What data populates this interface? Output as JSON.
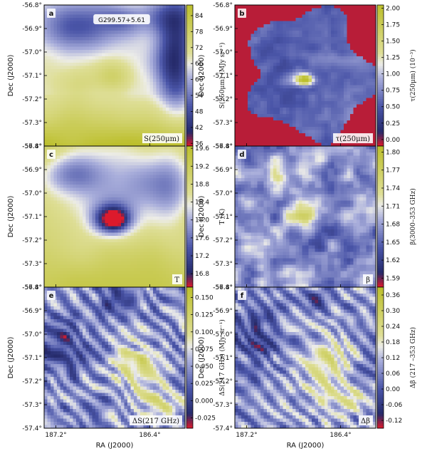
{
  "chart_data": [
    {
      "type": "heatmap",
      "panel": "a",
      "inside_label": "S(250μm)",
      "annotation": "G299.57+5.61",
      "colorbar": {
        "label": "S(250μm) (MJy sr⁻¹)",
        "ticks": [
          "84",
          "78",
          "72",
          "66",
          "60",
          "54",
          "48",
          "42",
          "36"
        ],
        "tick_values": [
          84,
          78,
          72,
          66,
          60,
          54,
          48,
          42,
          36
        ],
        "range": [
          35,
          88
        ],
        "map": "red-blue-yellow"
      }
    },
    {
      "type": "heatmap",
      "panel": "b",
      "inside_label": "τ(250μm)",
      "colorbar": {
        "label": "τ(250μm) (10⁻³)",
        "ticks": [
          "2.00",
          "1.75",
          "1.50",
          "1.25",
          "1.00",
          "0.75",
          "0.50",
          "0.25",
          "0.00"
        ],
        "tick_values": [
          2.0,
          1.75,
          1.5,
          1.25,
          1.0,
          0.75,
          0.5,
          0.25,
          0.0
        ],
        "range": [
          -0.1,
          2.05
        ],
        "map": "red-blue-yellow"
      }
    },
    {
      "type": "heatmap",
      "panel": "c",
      "inside_label": "T",
      "colorbar": {
        "label": "T (K)",
        "ticks": [
          "19.6",
          "19.2",
          "18.8",
          "18.4",
          "18.0",
          "17.6",
          "17.2",
          "16.8"
        ],
        "tick_values": [
          19.6,
          19.2,
          18.8,
          18.4,
          18.0,
          17.6,
          17.2,
          16.8
        ],
        "range": [
          16.5,
          19.65
        ],
        "map": "red-blue-yellow"
      }
    },
    {
      "type": "heatmap",
      "panel": "d",
      "inside_label": "β",
      "colorbar": {
        "label": "β(3000–353 GHz)",
        "ticks": [
          "1.80",
          "1.77",
          "1.74",
          "1.71",
          "1.68",
          "1.65",
          "1.62",
          "1.59"
        ],
        "tick_values": [
          1.8,
          1.77,
          1.74,
          1.71,
          1.68,
          1.65,
          1.62,
          1.59
        ],
        "range": [
          1.575,
          1.81
        ],
        "map": "red-blue-yellow"
      }
    },
    {
      "type": "heatmap",
      "panel": "e",
      "inside_label": "ΔS(217 GHz)",
      "colorbar": {
        "label": "ΔS(217 GHz) (MJy sr⁻¹)",
        "ticks": [
          "0.150",
          "0.125",
          "0.100",
          "0.075",
          "0.050",
          "0.025",
          "0.000",
          "-0.025"
        ],
        "tick_values": [
          0.15,
          0.125,
          0.1,
          0.075,
          0.05,
          0.025,
          0.0,
          -0.025
        ],
        "range": [
          -0.04,
          0.165
        ],
        "map": "red-blue-yellow"
      }
    },
    {
      "type": "heatmap",
      "panel": "f",
      "inside_label": "Δβ",
      "colorbar": {
        "label": "Δβ (217 –353 GHz)",
        "ticks": [
          "0.36",
          "0.30",
          "0.24",
          "0.18",
          "0.12",
          "0.06",
          "0.00",
          "-0.06",
          "-0.12"
        ],
        "tick_values": [
          0.36,
          0.3,
          0.24,
          0.18,
          0.12,
          0.06,
          0.0,
          -0.06,
          -0.12
        ],
        "range": [
          -0.15,
          0.39
        ],
        "map": "red-blue-yellow"
      }
    }
  ],
  "axes": {
    "ylabel": "Dec (J2000)",
    "xlabel": "RA (J2000)",
    "yticks": [
      "-56.8°",
      "-56.9°",
      "-57.0°",
      "-57.1°",
      "-57.2°",
      "-57.3°",
      "-57.4°"
    ],
    "ytick_values": [
      -56.8,
      -56.9,
      -57.0,
      -57.1,
      -57.2,
      -57.3,
      -57.4
    ],
    "ylim": [
      -57.4,
      -56.8
    ],
    "xticks": [
      "187.2°",
      "186.4°"
    ],
    "xtick_values": [
      187.2,
      186.4
    ],
    "xlim": [
      187.3,
      186.1
    ]
  },
  "colors": {
    "red": "#dd1a2c",
    "blue": "#4a55a8",
    "lavender": "#a9aedb",
    "white": "#f4f4f0",
    "yellow": "#bcbf2c",
    "navy": "#252a6a"
  }
}
